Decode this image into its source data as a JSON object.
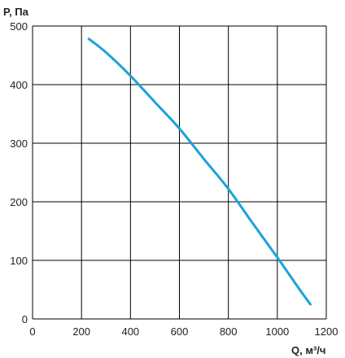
{
  "chart_data": {
    "type": "line",
    "title": "",
    "xlabel": "Q, м³/ч",
    "ylabel": "P, Па",
    "xlim": [
      0,
      1200
    ],
    "ylim": [
      0,
      500
    ],
    "x_ticks": [
      "0",
      "200",
      "400",
      "600",
      "800",
      "1000",
      "1200"
    ],
    "y_ticks": [
      "0",
      "100",
      "200",
      "300",
      "400",
      "500"
    ],
    "grid": true,
    "legend": "none",
    "colors": {
      "series": "#1aa3d9",
      "grid": "#000000",
      "text": "#222222"
    },
    "series": [
      {
        "x": [
          230,
          300,
          400,
          500,
          600,
          700,
          800,
          900,
          1000,
          1050,
          1100,
          1135
        ],
        "values": [
          478,
          455,
          415,
          370,
          325,
          273,
          222,
          163,
          105,
          75,
          45,
          25
        ]
      }
    ]
  }
}
